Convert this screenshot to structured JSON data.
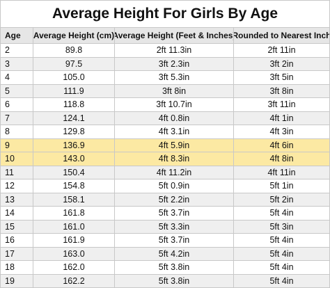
{
  "table": {
    "title": "Average Height For Girls By Age",
    "header": [
      "Age",
      "Average Height (cm)",
      "Average Height (Feet & Inches)",
      "Rounded to Nearest Inch"
    ],
    "rows": [
      [
        "2",
        "89.8",
        "2ft 11.3in",
        "2ft 11in"
      ],
      [
        "3",
        "97.5",
        "3ft 2.3in",
        "3ft 2in"
      ],
      [
        "4",
        "105.0",
        "3ft 5.3in",
        "3ft 5in"
      ],
      [
        "5",
        "111.9",
        "3ft 8in",
        "3ft 8in"
      ],
      [
        "6",
        "118.8",
        "3ft 10.7in",
        "3ft 11in"
      ],
      [
        "7",
        "124.1",
        "4ft 0.8in",
        "4ft 1in"
      ],
      [
        "8",
        "129.8",
        "4ft 3.1in",
        "4ft 3in"
      ],
      [
        "9",
        "136.9",
        "4ft 5.9in",
        "4ft 6in"
      ],
      [
        "10",
        "143.0",
        "4ft 8.3in",
        "4ft 8in"
      ],
      [
        "11",
        "150.4",
        "4ft 11.2in",
        "4ft 11in"
      ],
      [
        "12",
        "154.8",
        "5ft 0.9in",
        "5ft 1in"
      ],
      [
        "13",
        "158.1",
        "5ft 2.2in",
        "5ft 2in"
      ],
      [
        "14",
        "161.8",
        "5ft 3.7in",
        "5ft 4in"
      ],
      [
        "15",
        "161.0",
        "5ft 3.3in",
        "5ft 3in"
      ],
      [
        "16",
        "161.9",
        "5ft 3.7in",
        "5ft 4in"
      ],
      [
        "17",
        "163.0",
        "5ft 4.2in",
        "5ft 4in"
      ],
      [
        "18",
        "162.0",
        "5ft 3.8in",
        "5ft 4in"
      ],
      [
        "19",
        "162.2",
        "5ft 3.8in",
        "5ft 4in"
      ]
    ],
    "highlight_rows": [
      7,
      8
    ],
    "highlight_color": "#fce9a3",
    "stripe_color": "#efefef"
  }
}
